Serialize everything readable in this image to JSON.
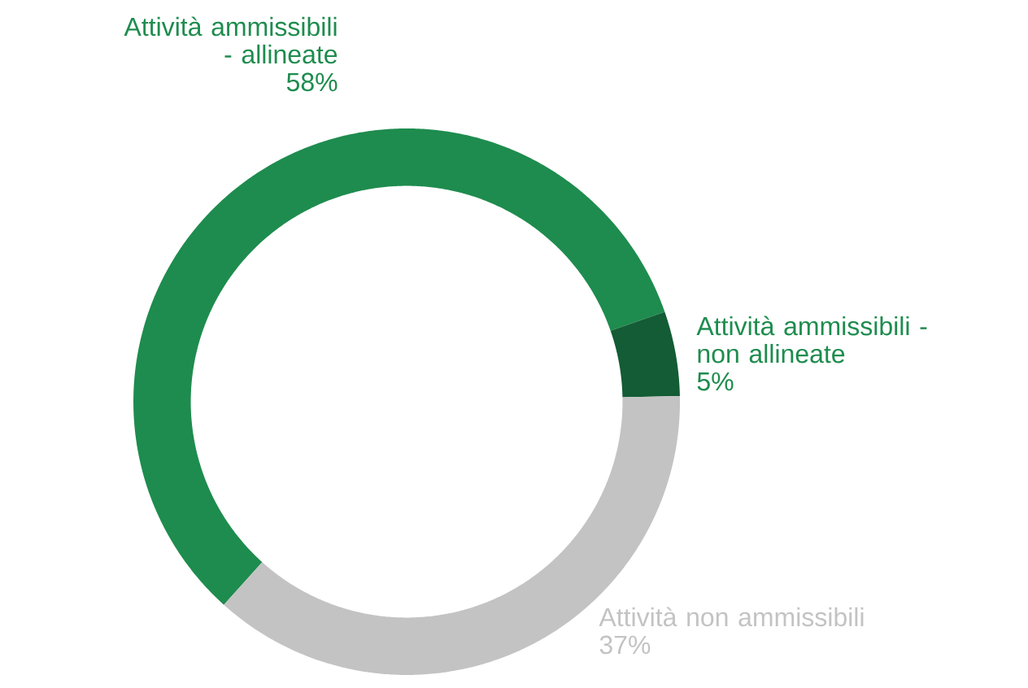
{
  "chart_data": {
    "type": "donut",
    "categories": [
      "Attività ammissibili - allineate",
      "Attività ammissibili - non allineate",
      "Attività non ammissibili"
    ],
    "values": [
      58,
      5,
      37
    ],
    "value_labels": [
      "58%",
      "5%",
      "37%"
    ],
    "colors": [
      "#1e8c4e",
      "#135c35",
      "#c3c3c3"
    ]
  }
}
